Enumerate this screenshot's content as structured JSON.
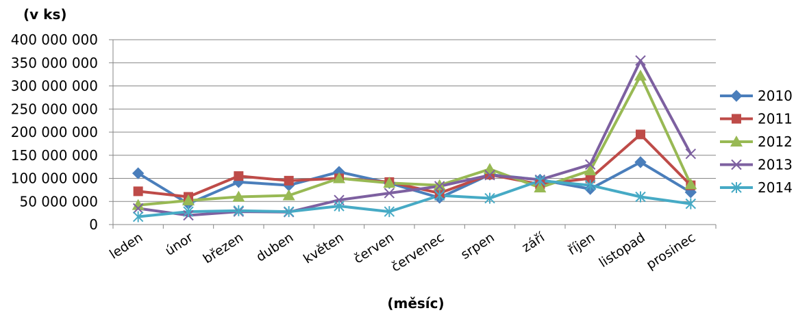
{
  "chart_data": {
    "type": "line",
    "ylabel": "(v ks)",
    "xlabel": "(měsíc)",
    "ylim": [
      0,
      400000000
    ],
    "yticks": [
      0,
      50000000,
      100000000,
      150000000,
      200000000,
      250000000,
      300000000,
      350000000,
      400000000
    ],
    "ytick_labels": [
      "0",
      "50 000 000",
      "100 000 000",
      "150 000 000",
      "200 000 000",
      "250 000 000",
      "300 000 000",
      "350 000 000",
      "400 000 000"
    ],
    "categories": [
      "leden",
      "únor",
      "březen",
      "duben",
      "květen",
      "červen",
      "červenec",
      "srpen",
      "září",
      "říjen",
      "listopad",
      "prosinec"
    ],
    "grid": true,
    "legend_position": "right",
    "series": [
      {
        "name": "2010",
        "color": "#4a7ebb",
        "marker": "diamond",
        "values": [
          111000000,
          45000000,
          92000000,
          85000000,
          114000000,
          90000000,
          58000000,
          108000000,
          97000000,
          77000000,
          135000000,
          70000000
        ]
      },
      {
        "name": "2011",
        "color": "#be4b48",
        "marker": "square",
        "values": [
          72000000,
          60000000,
          105000000,
          95000000,
          100000000,
          92000000,
          68000000,
          108000000,
          87000000,
          100000000,
          195000000,
          85000000
        ]
      },
      {
        "name": "2012",
        "color": "#98b954",
        "marker": "triangle",
        "values": [
          42000000,
          52000000,
          60000000,
          63000000,
          100000000,
          90000000,
          85000000,
          120000000,
          80000000,
          117000000,
          322000000,
          87000000
        ]
      },
      {
        "name": "2013",
        "color": "#7d60a0",
        "marker": "x",
        "values": [
          35000000,
          20000000,
          28000000,
          27000000,
          53000000,
          68000000,
          83000000,
          107000000,
          97000000,
          130000000,
          355000000,
          153000000
        ]
      },
      {
        "name": "2014",
        "color": "#46aac5",
        "marker": "asterisk",
        "values": [
          17000000,
          28000000,
          30000000,
          28000000,
          40000000,
          28000000,
          63000000,
          57000000,
          95000000,
          85000000,
          60000000,
          45000000
        ]
      }
    ]
  }
}
